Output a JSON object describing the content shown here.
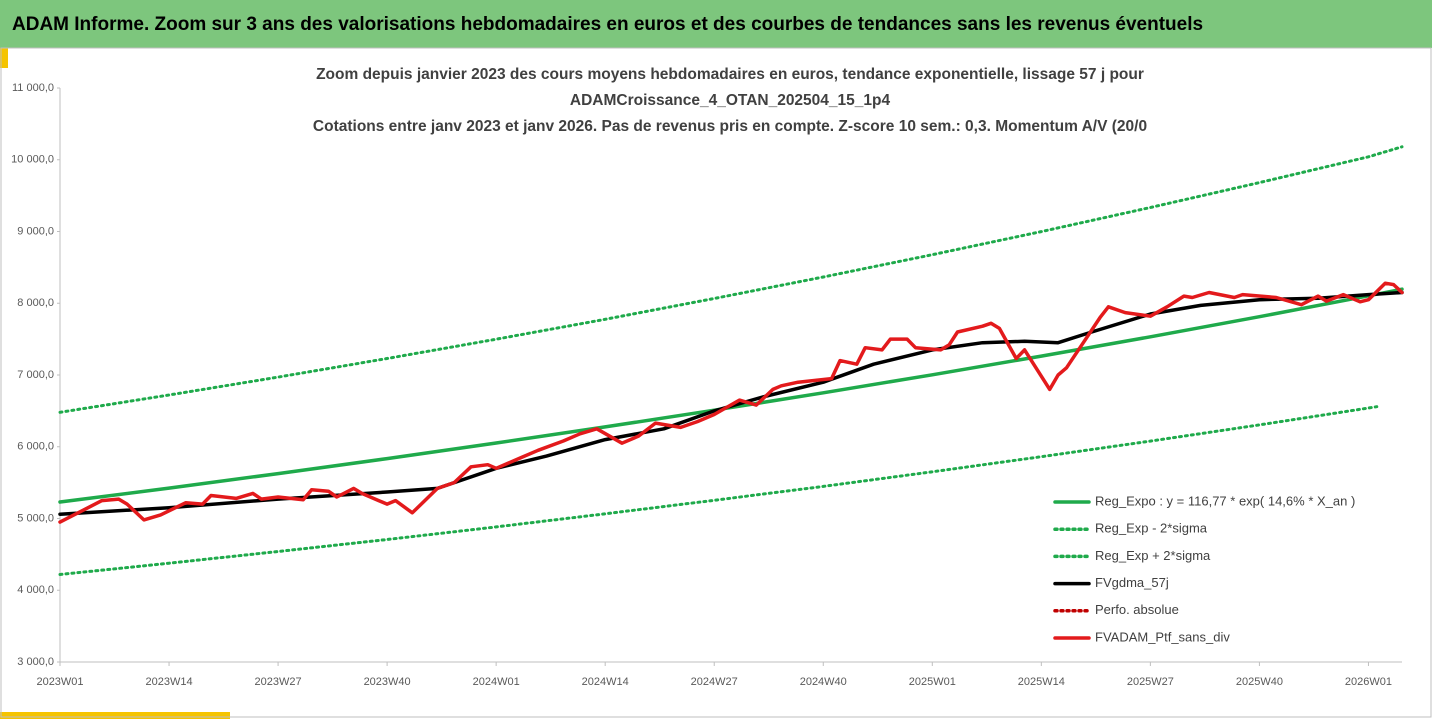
{
  "header": {
    "title": "ADAM Informe. Zoom sur 3 ans des valorisations hebdomadaires en euros et des courbes de tendances sans les revenus éventuels"
  },
  "chart_data": {
    "type": "line",
    "title": [
      "Zoom depuis janvier 2023 des cours moyens hebdomadaires  en euros, tendance exponentielle, lissage 57 j pour",
      "ADAMCroissance_4_OTAN_202504_15_1p4",
      "Cotations entre janv 2023 et janv 2026. Pas de revenus pris en compte. Z-score 10 sem.: 0,3. Momentum A/V (20/0"
    ],
    "xlim": [
      0,
      160
    ],
    "xticks": [
      {
        "value": 0,
        "label": "2023W01"
      },
      {
        "value": 13,
        "label": "2023W14"
      },
      {
        "value": 26,
        "label": "2023W27"
      },
      {
        "value": 39,
        "label": "2023W40"
      },
      {
        "value": 52,
        "label": "2024W01"
      },
      {
        "value": 65,
        "label": "2024W14"
      },
      {
        "value": 78,
        "label": "2024W27"
      },
      {
        "value": 91,
        "label": "2024W40"
      },
      {
        "value": 104,
        "label": "2025W01"
      },
      {
        "value": 117,
        "label": "2025W14"
      },
      {
        "value": 130,
        "label": "2025W27"
      },
      {
        "value": 143,
        "label": "2025W40"
      },
      {
        "value": 156,
        "label": "2026W01"
      }
    ],
    "ylim": [
      3000,
      11000
    ],
    "yticks": [
      {
        "value": 3000,
        "label": "3 000,0"
      },
      {
        "value": 4000,
        "label": "4 000,0"
      },
      {
        "value": 5000,
        "label": "5 000,0"
      },
      {
        "value": 6000,
        "label": "6 000,0"
      },
      {
        "value": 7000,
        "label": "7 000,0"
      },
      {
        "value": 8000,
        "label": "8 000,0"
      },
      {
        "value": 9000,
        "label": "9 000,0"
      },
      {
        "value": 10000,
        "label": "10 000,0"
      },
      {
        "value": 11000,
        "label": "11 000,0"
      }
    ],
    "grid": false,
    "legend": "right",
    "series": [
      {
        "name": "Reg_Expo : y = 116,77 * exp( 14,6% *  X_an )",
        "color": "#1faa4b",
        "style": "solid",
        "x": [
          0,
          13,
          26,
          39,
          52,
          65,
          78,
          91,
          104,
          117,
          130,
          143,
          156,
          160
        ],
        "values": [
          5230,
          5424,
          5626,
          5835,
          6052,
          6277,
          6510,
          6752,
          7003,
          7263,
          7533,
          7813,
          8104,
          8196
        ]
      },
      {
        "name": "Reg_Exp - 2*sigma",
        "color": "#1faa4b",
        "style": "dotted",
        "x": [
          0,
          13,
          26,
          39,
          52,
          65,
          78,
          91,
          104,
          117,
          130,
          143,
          156,
          157
        ],
        "values": [
          4220,
          4377,
          4540,
          4708,
          4883,
          5065,
          5253,
          5448,
          5651,
          5861,
          6079,
          6305,
          6540,
          6558
        ]
      },
      {
        "name": "Reg_Exp + 2*sigma",
        "color": "#1faa4b",
        "style": "dotted",
        "x": [
          0,
          13,
          26,
          39,
          52,
          65,
          78,
          91,
          104,
          117,
          130,
          143,
          156,
          160
        ],
        "values": [
          6480,
          6721,
          6971,
          7230,
          7499,
          7777,
          8066,
          8366,
          8677,
          8999,
          9334,
          9681,
          10041,
          10180
        ]
      },
      {
        "name": "FVgdma_57j",
        "color": "#000000",
        "style": "solid",
        "x": [
          0,
          10,
          13,
          26,
          39,
          45,
          52,
          58,
          65,
          72,
          78,
          84,
          91,
          97,
          104,
          110,
          115,
          119,
          123,
          130,
          136,
          143,
          150,
          156,
          160
        ],
        "values": [
          5060,
          5130,
          5150,
          5270,
          5370,
          5420,
          5700,
          5870,
          6100,
          6250,
          6500,
          6700,
          6900,
          7150,
          7350,
          7450,
          7470,
          7450,
          7600,
          7850,
          7970,
          8050,
          8070,
          8120,
          8150
        ]
      },
      {
        "name": "Perfo. absolue",
        "color": "#c00000",
        "style": "dotted",
        "x": [],
        "values": []
      },
      {
        "name": "FVADAM_Ptf_sans_div",
        "color": "#e31a1c",
        "style": "solid",
        "x": [
          0,
          5,
          7,
          8,
          10,
          12,
          15,
          17,
          18,
          21,
          23,
          24,
          26,
          29,
          30,
          32,
          33,
          35,
          36,
          38,
          39,
          40,
          42,
          45,
          47,
          49,
          51,
          52,
          55,
          57,
          60,
          62,
          64,
          67,
          69,
          71,
          74,
          76,
          78,
          81,
          83,
          85,
          86,
          88,
          92,
          93,
          95,
          96,
          98,
          99,
          101,
          102,
          105,
          106,
          107,
          110,
          111,
          112,
          114,
          115,
          118,
          119,
          120,
          122,
          124,
          125,
          127,
          130,
          132,
          134,
          135,
          137,
          140,
          141,
          145,
          148,
          150,
          151,
          153,
          155,
          156,
          158,
          159,
          160
        ],
        "values": [
          4950,
          5250,
          5270,
          5200,
          4980,
          5050,
          5220,
          5200,
          5320,
          5280,
          5350,
          5270,
          5300,
          5260,
          5400,
          5380,
          5300,
          5420,
          5350,
          5250,
          5200,
          5250,
          5080,
          5420,
          5500,
          5720,
          5750,
          5700,
          5850,
          5950,
          6080,
          6180,
          6250,
          6050,
          6150,
          6330,
          6270,
          6350,
          6450,
          6650,
          6580,
          6800,
          6850,
          6900,
          6950,
          7200,
          7150,
          7380,
          7350,
          7500,
          7500,
          7380,
          7350,
          7420,
          7600,
          7680,
          7720,
          7650,
          7230,
          7350,
          6800,
          7000,
          7100,
          7450,
          7800,
          7950,
          7870,
          7820,
          7950,
          8100,
          8080,
          8150,
          8080,
          8120,
          8080,
          7980,
          8100,
          8030,
          8120,
          8020,
          8050,
          8280,
          8260,
          8150
        ]
      }
    ]
  }
}
